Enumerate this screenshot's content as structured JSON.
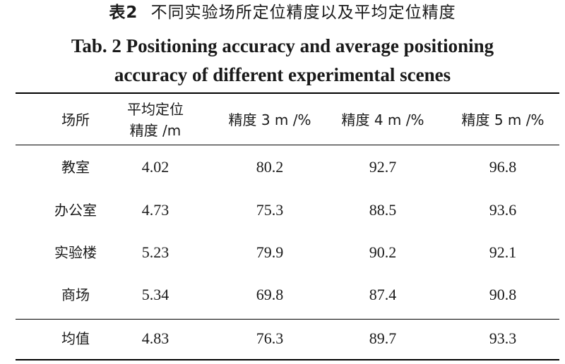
{
  "caption": {
    "zh_label": "表2",
    "zh_title": "不同实验场所定位精度以及平均定位精度",
    "en_line1": "Tab. 2  Positioning accuracy and average positioning",
    "en_line2": "accuracy of different experimental scenes"
  },
  "table": {
    "headers": [
      {
        "line1": "场所",
        "line2": ""
      },
      {
        "line1": "平均定位",
        "line2": "精度 /m"
      },
      {
        "line1": "精度 3 m /%",
        "line2": ""
      },
      {
        "line1": "精度 4 m /%",
        "line2": ""
      },
      {
        "line1": "精度 5 m /%",
        "line2": ""
      }
    ],
    "rows": [
      [
        "教室",
        "4.02",
        "80.2",
        "92.7",
        "96.8"
      ],
      [
        "办公室",
        "4.73",
        "75.3",
        "88.5",
        "93.6"
      ],
      [
        "实验楼",
        "5.23",
        "79.9",
        "90.2",
        "92.1"
      ],
      [
        "商场",
        "5.34",
        "69.8",
        "87.4",
        "90.8"
      ]
    ],
    "summary": [
      "均值",
      "4.83",
      "76.3",
      "89.7",
      "93.3"
    ]
  }
}
